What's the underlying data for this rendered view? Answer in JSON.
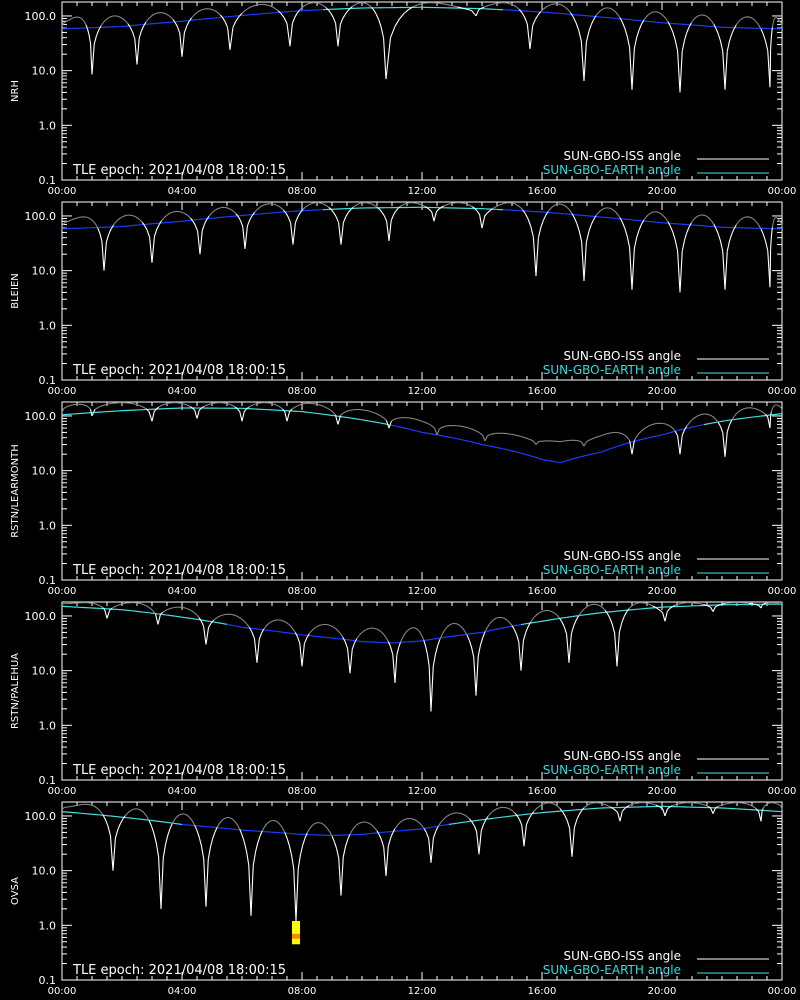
{
  "chart_data": [
    {
      "type": "line",
      "ylabel": "NRH",
      "yscale": "log",
      "ylim": [
        0.1,
        180
      ],
      "xlim_hours": [
        0,
        24
      ],
      "x_tick_labels": [
        "00:00",
        "04:00",
        "08:00",
        "12:00",
        "16:00",
        "20:00",
        "00:00"
      ],
      "y_tick_labels": [
        "0.1",
        "1.0",
        "10.0",
        "100.0"
      ],
      "annotation": "TLE epoch: 2021/04/08 18:00:15",
      "legend": [
        "SUN-GBO-ISS angle",
        "SUN-GBO-EARTH angle"
      ],
      "legend_position": "bottom-right",
      "series": [
        {
          "name": "SUN-GBO-EARTH angle",
          "x": [
            0,
            2,
            4,
            6,
            8,
            10,
            12,
            14,
            16,
            18,
            20,
            22,
            24
          ],
          "values": [
            58,
            64,
            80,
            102,
            125,
            140,
            144,
            136,
            118,
            95,
            75,
            62,
            58
          ]
        },
        {
          "name": "SUN-GBO-ISS angle",
          "x_minima": [
            1.0,
            2.5,
            4.0,
            5.6,
            7.6,
            9.2,
            10.8,
            13.8,
            15.6,
            17.4,
            19.0,
            20.6,
            22.1,
            23.6
          ],
          "y_minima": [
            8.5,
            13,
            18,
            24,
            28,
            28,
            7,
            100,
            25,
            6.5,
            4.5,
            4.0,
            4.5,
            5.0
          ]
        }
      ]
    },
    {
      "type": "line",
      "ylabel": "BLEIEN",
      "yscale": "log",
      "ylim": [
        0.1,
        180
      ],
      "xlim_hours": [
        0,
        24
      ],
      "x_tick_labels": [
        "00:00",
        "04:00",
        "08:00",
        "12:00",
        "16:00",
        "20:00",
        "00:00"
      ],
      "y_tick_labels": [
        "0.1",
        "1.0",
        "10.0",
        "100.0"
      ],
      "annotation": "TLE epoch: 2021/04/08 18:00:15",
      "legend": [
        "SUN-GBO-ISS angle",
        "SUN-GBO-EARTH angle"
      ],
      "legend_position": "bottom-right",
      "series": [
        {
          "name": "SUN-GBO-EARTH angle",
          "x": [
            0,
            2,
            4,
            6,
            8,
            10,
            12,
            14,
            16,
            18,
            20,
            22,
            24
          ],
          "values": [
            58,
            64,
            80,
            102,
            125,
            140,
            144,
            136,
            118,
            95,
            75,
            62,
            58
          ]
        },
        {
          "name": "SUN-GBO-ISS angle",
          "x_minima": [
            1.4,
            3.0,
            4.6,
            6.1,
            7.7,
            9.3,
            10.9,
            12.4,
            14.0,
            15.8,
            17.4,
            19.0,
            20.6,
            22.1,
            23.6
          ],
          "y_minima": [
            10,
            14,
            20,
            25,
            30,
            30,
            35,
            80,
            60,
            8,
            6.5,
            4.5,
            4.0,
            4.5,
            5.0
          ]
        }
      ]
    },
    {
      "type": "line",
      "ylabel": "RSTN/LEARMONTH",
      "yscale": "log",
      "ylim": [
        0.1,
        180
      ],
      "xlim_hours": [
        0,
        24
      ],
      "x_tick_labels": [
        "00:00",
        "04:00",
        "08:00",
        "12:00",
        "16:00",
        "20:00",
        "00:00"
      ],
      "y_tick_labels": [
        "0.1",
        "1.0",
        "10.0",
        "100.0"
      ],
      "annotation": "TLE epoch: 2021/04/08 18:00:15",
      "legend": [
        "SUN-GBO-ISS angle",
        "SUN-GBO-EARTH angle"
      ],
      "legend_position": "bottom-right",
      "series": [
        {
          "name": "SUN-GBO-EARTH angle",
          "x": [
            0,
            2,
            4,
            6,
            8,
            10,
            12,
            14,
            16,
            16.6,
            18,
            20,
            22,
            24
          ],
          "values": [
            105,
            125,
            140,
            138,
            120,
            85,
            50,
            30,
            16,
            14,
            22,
            45,
            80,
            110
          ]
        },
        {
          "name": "SUN-GBO-ISS angle",
          "x_minima": [
            1.0,
            3.0,
            4.5,
            6.0,
            7.5,
            9.2,
            10.9,
            12.5,
            14.1,
            15.8,
            17.4,
            19.0,
            20.6,
            22.1,
            23.6
          ],
          "y_minima": [
            100,
            80,
            90,
            80,
            80,
            70,
            60,
            45,
            35,
            30,
            28,
            20,
            20,
            18,
            60
          ]
        }
      ]
    },
    {
      "type": "line",
      "ylabel": "RSTN/PALEHUA",
      "yscale": "log",
      "ylim": [
        0.1,
        180
      ],
      "xlim_hours": [
        0,
        24
      ],
      "x_tick_labels": [
        "00:00",
        "04:00",
        "08:00",
        "12:00",
        "16:00",
        "20:00",
        "00:00"
      ],
      "y_tick_labels": [
        "0.1",
        "1.0",
        "10.0",
        "100.0"
      ],
      "annotation": "TLE epoch: 2021/04/08 18:00:15",
      "legend": [
        "SUN-GBO-ISS angle",
        "SUN-GBO-EARTH angle"
      ],
      "legend_position": "bottom-right",
      "series": [
        {
          "name": "SUN-GBO-EARTH angle",
          "x": [
            0,
            2,
            4,
            6,
            8,
            10,
            11,
            12,
            14,
            16,
            18,
            20,
            22,
            24
          ],
          "values": [
            150,
            130,
            95,
            62,
            45,
            34,
            32,
            35,
            50,
            80,
            115,
            145,
            160,
            165
          ]
        },
        {
          "name": "SUN-GBO-ISS angle",
          "x_minima": [
            1.5,
            3.2,
            4.8,
            6.5,
            8.0,
            9.6,
            11.1,
            12.3,
            13.8,
            15.3,
            16.9,
            18.5,
            20.1,
            21.7,
            23.3
          ],
          "y_minima": [
            90,
            70,
            30,
            14,
            12,
            9,
            6,
            1.8,
            3.5,
            10,
            14,
            12,
            80,
            120,
            140
          ]
        }
      ]
    },
    {
      "type": "line",
      "ylabel": "OVSA",
      "yscale": "log",
      "ylim": [
        0.1,
        180
      ],
      "xlim_hours": [
        0,
        24
      ],
      "x_tick_labels": [
        "00:00",
        "04:00",
        "08:00",
        "12:00",
        "16:00",
        "20:00",
        "00:00"
      ],
      "y_tick_labels": [
        "0.1",
        "1.0",
        "10.0",
        "100.0"
      ],
      "annotation": "TLE epoch: 2021/04/08 18:00:15",
      "legend": [
        "SUN-GBO-ISS angle",
        "SUN-GBO-EARTH angle"
      ],
      "legend_position": "bottom-right",
      "series": [
        {
          "name": "SUN-GBO-EARTH angle",
          "x": [
            0,
            2,
            4,
            6,
            8,
            9,
            10,
            12,
            14,
            16,
            18,
            20,
            22,
            24
          ],
          "values": [
            120,
            95,
            70,
            55,
            46,
            44,
            46,
            58,
            85,
            115,
            140,
            150,
            140,
            120
          ]
        },
        {
          "name": "SUN-GBO-ISS angle",
          "x_minima": [
            1.7,
            3.3,
            4.8,
            6.3,
            7.8,
            9.3,
            10.8,
            12.3,
            13.9,
            15.4,
            17.0,
            18.6,
            20.1,
            21.7,
            23.3
          ],
          "y_minima": [
            10,
            2.0,
            2.2,
            1.5,
            1.2,
            3.5,
            8,
            14,
            20,
            28,
            18,
            80,
            100,
            110,
            80
          ]
        },
        {
          "name": "",
          "type": "bar",
          "color": "#ffff00",
          "highlight_color": "#ff8800",
          "x": 7.8,
          "y_range": [
            0.45,
            1.2
          ]
        }
      ]
    }
  ],
  "colors": {
    "background": "#000000",
    "axes": "#ffffff",
    "iss_series": "#ffffff",
    "iss_faded_series": "#888888",
    "earth_dark": "#1a3cff",
    "earth_light": "#44e0e0",
    "legend_earth_text": "#33dddd"
  }
}
